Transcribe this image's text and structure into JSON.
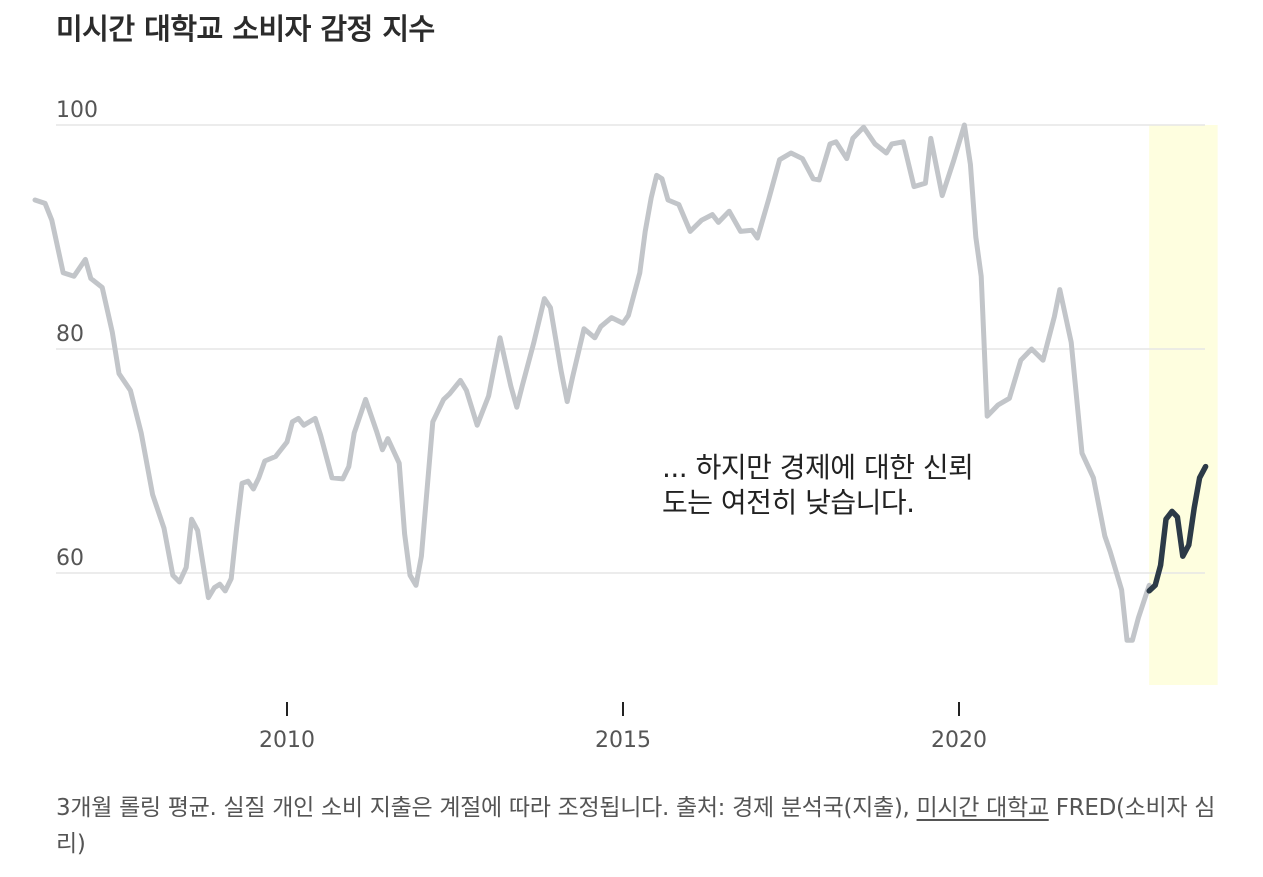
{
  "title": "미시간 대학교 소비자 감정 지수",
  "annotation": "... 하지만 경제에 대한 신뢰도는 여전히 낮습니다.",
  "source": {
    "text": "3개월 롤링 평균. 실질 개인 소비 지출은 계절에 따라 조정됩니다. 출처: 경제 분석국(지출), ",
    "link_label": "미시간 대학교",
    "suffix": " FRED(소비자 심리)"
  },
  "colors": {
    "history_line": "#c2c5c9",
    "recent_line": "#2c3a47",
    "highlight_band": "#fefedf",
    "gridline": "#e6e6e6",
    "axis_tick": "#222222"
  },
  "chart_data": {
    "type": "line",
    "title": "미시간 대학교 소비자 감정 지수",
    "xlabel": "",
    "ylabel": "",
    "xlim": [
      2006.0,
      2024.25
    ],
    "ylim": [
      50,
      100
    ],
    "xticks": [
      2010,
      2015,
      2020
    ],
    "xtick_labels": [
      "2010",
      "2015",
      "2020"
    ],
    "yticks": [
      60,
      80,
      100
    ],
    "ytick_labels": [
      "60",
      "80",
      "100"
    ],
    "grid": true,
    "highlight_range": [
      2022.83,
      2023.67
    ],
    "series": [
      {
        "role": "history",
        "x": [
          2006.25,
          2006.4,
          2006.5,
          2006.67,
          2006.83,
          2007.0,
          2007.08,
          2007.25,
          2007.4,
          2007.5,
          2007.67,
          2007.83,
          2008.0,
          2008.17,
          2008.3,
          2008.4,
          2008.5,
          2008.58,
          2008.67,
          2008.83,
          2008.92,
          2009.0,
          2009.08,
          2009.17,
          2009.25,
          2009.33,
          2009.42,
          2009.5,
          2009.58,
          2009.67,
          2009.83,
          2010.0,
          2010.08,
          2010.17,
          2010.25,
          2010.42,
          2010.5,
          2010.67,
          2010.83,
          2010.92,
          2011.0,
          2011.17,
          2011.33,
          2011.42,
          2011.5,
          2011.67,
          2011.75,
          2011.83,
          2011.92,
          2012.0,
          2012.17,
          2012.33,
          2012.42,
          2012.58,
          2012.67,
          2012.83,
          2013.0,
          2013.17,
          2013.33,
          2013.42,
          2013.5,
          2013.67,
          2013.83,
          2013.92,
          2014.08,
          2014.17,
          2014.25,
          2014.42,
          2014.58,
          2014.67,
          2014.83,
          2015.0,
          2015.08,
          2015.25,
          2015.33,
          2015.42,
          2015.5,
          2015.58,
          2015.67,
          2015.83,
          2016.0,
          2016.17,
          2016.33,
          2016.42,
          2016.58,
          2016.75,
          2016.92,
          2017.0,
          2017.17,
          2017.33,
          2017.5,
          2017.67,
          2017.83,
          2017.92,
          2018.08,
          2018.17,
          2018.33,
          2018.42,
          2018.58,
          2018.75,
          2018.92,
          2019.0,
          2019.17,
          2019.33,
          2019.5,
          2019.58,
          2019.75,
          2019.92,
          2020.08,
          2020.17,
          2020.25,
          2020.33,
          2020.42,
          2020.58,
          2020.75,
          2020.92,
          2021.08,
          2021.25,
          2021.42,
          2021.5,
          2021.67,
          2021.83,
          2022.0,
          2022.17,
          2022.25,
          2022.42,
          2022.5,
          2022.58,
          2022.67,
          2022.83
        ],
        "values": [
          93.3,
          93.0,
          91.5,
          86.8,
          86.5,
          88.0,
          86.3,
          85.5,
          81.5,
          77.8,
          76.3,
          72.5,
          67.0,
          64.0,
          59.8,
          59.2,
          60.5,
          64.8,
          63.8,
          57.8,
          58.7,
          59.0,
          58.4,
          59.5,
          64.0,
          68.0,
          68.2,
          67.5,
          68.5,
          70.0,
          70.4,
          71.7,
          73.5,
          73.8,
          73.2,
          73.8,
          72.3,
          68.5,
          68.4,
          69.5,
          72.5,
          75.5,
          72.7,
          71.0,
          72.0,
          69.8,
          63.5,
          59.8,
          58.9,
          61.5,
          73.5,
          75.5,
          76.0,
          77.2,
          76.3,
          73.2,
          75.8,
          81.0,
          76.7,
          74.8,
          76.7,
          80.5,
          84.5,
          83.7,
          78.0,
          75.3,
          77.5,
          81.8,
          81.0,
          82.0,
          82.8,
          82.3,
          83.0,
          86.8,
          90.5,
          93.5,
          95.5,
          95.2,
          93.3,
          92.9,
          90.5,
          91.5,
          92.0,
          91.3,
          92.3,
          90.5,
          90.6,
          89.9,
          93.4,
          96.9,
          97.5,
          97.0,
          95.2,
          95.1,
          98.3,
          98.5,
          97.0,
          98.8,
          99.8,
          98.3,
          97.5,
          98.3,
          98.5,
          94.5,
          94.8,
          98.8,
          93.7,
          96.8,
          100.0,
          96.5,
          90.0,
          86.5,
          74.0,
          75.0,
          75.6,
          79.0,
          80.0,
          79.0,
          82.9,
          85.3,
          80.6,
          70.7,
          68.5,
          63.3,
          61.9,
          58.5,
          54.0,
          54.0,
          56.0,
          58.9
        ]
      },
      {
        "role": "recent",
        "x": [
          2022.83,
          2022.92,
          2023.0,
          2023.08,
          2023.17,
          2023.25,
          2023.33,
          2023.42,
          2023.5,
          2023.58,
          2023.67
        ],
        "values": [
          58.4,
          58.9,
          60.7,
          64.8,
          65.5,
          65.0,
          61.5,
          62.5,
          65.8,
          68.5,
          69.5
        ]
      }
    ]
  }
}
